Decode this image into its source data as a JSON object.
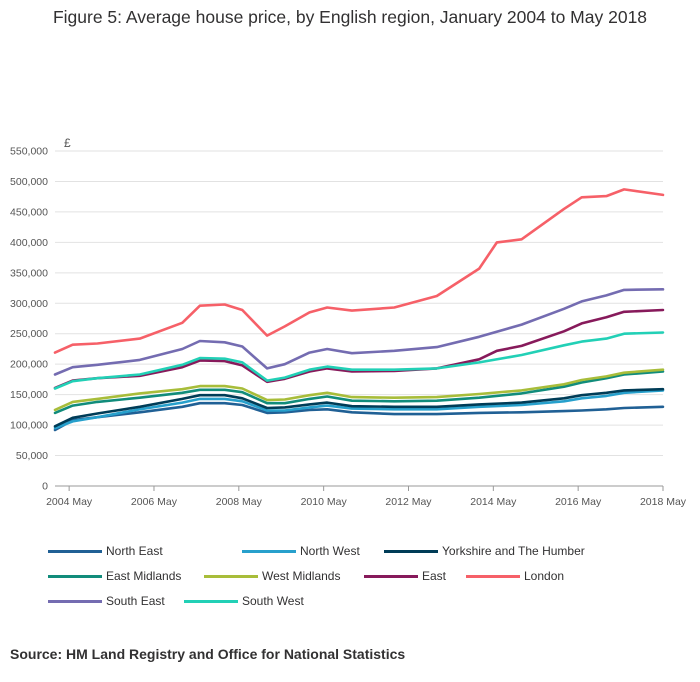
{
  "title": "Figure 5: Average house price, by English region, January 2004 to May 2018",
  "source": "Source: HM Land Registry and Office for National Statistics",
  "chart_data": {
    "type": "line",
    "title": "Figure 5: Average house price, by English region, January 2004 to May 2018",
    "ylabel": "£",
    "ylim": [
      0,
      550000
    ],
    "yticks": [
      0,
      50000,
      100000,
      150000,
      200000,
      250000,
      300000,
      350000,
      400000,
      450000,
      500000,
      550000
    ],
    "ytick_labels": [
      "0",
      "50,000",
      "100,000",
      "150,000",
      "200,000",
      "250,000",
      "300,000",
      "350,000",
      "400,000",
      "450,000",
      "500,000",
      "550,000"
    ],
    "xlim": [
      "2004-01",
      "2018-05"
    ],
    "xticks": [
      "2004-05",
      "2006-05",
      "2008-05",
      "2010-05",
      "2012-05",
      "2014-05",
      "2016-05",
      "2018-05"
    ],
    "xtick_labels": [
      "2004 May",
      "2006 May",
      "2008 May",
      "2010 May",
      "2012 May",
      "2014 May",
      "2016 May",
      "2018 May"
    ],
    "grid": "horizontal",
    "legend_position": "bottom",
    "series": [
      {
        "name": "North East",
        "color": "#206095",
        "points": [
          [
            "2004-01",
            92000
          ],
          [
            "2004-06",
            108000
          ],
          [
            "2005-01",
            113000
          ],
          [
            "2006-01",
            121000
          ],
          [
            "2007-01",
            130000
          ],
          [
            "2007-06",
            136000
          ],
          [
            "2008-01",
            136000
          ],
          [
            "2008-06",
            133000
          ],
          [
            "2009-01",
            120000
          ],
          [
            "2009-06",
            121000
          ],
          [
            "2010-01",
            125000
          ],
          [
            "2010-06",
            126000
          ],
          [
            "2011-01",
            121000
          ],
          [
            "2012-01",
            118000
          ],
          [
            "2013-01",
            118000
          ],
          [
            "2014-01",
            120000
          ],
          [
            "2015-01",
            121000
          ],
          [
            "2016-01",
            123000
          ],
          [
            "2016-06",
            124000
          ],
          [
            "2017-01",
            126000
          ],
          [
            "2017-06",
            128000
          ],
          [
            "2018-05",
            130000
          ]
        ]
      },
      {
        "name": "North West",
        "color": "#27a0cc",
        "points": [
          [
            "2004-01",
            95000
          ],
          [
            "2004-06",
            106000
          ],
          [
            "2005-01",
            113000
          ],
          [
            "2006-01",
            126000
          ],
          [
            "2007-01",
            137000
          ],
          [
            "2007-06",
            143000
          ],
          [
            "2008-01",
            143000
          ],
          [
            "2008-06",
            139000
          ],
          [
            "2009-01",
            124000
          ],
          [
            "2009-06",
            124000
          ],
          [
            "2010-01",
            129000
          ],
          [
            "2010-06",
            132000
          ],
          [
            "2011-01",
            127000
          ],
          [
            "2012-01",
            126000
          ],
          [
            "2013-01",
            126000
          ],
          [
            "2014-01",
            130000
          ],
          [
            "2015-01",
            133000
          ],
          [
            "2016-01",
            139000
          ],
          [
            "2016-06",
            144000
          ],
          [
            "2017-01",
            148000
          ],
          [
            "2017-06",
            153000
          ],
          [
            "2018-05",
            157000
          ]
        ]
      },
      {
        "name": "Yorkshire and The Humber",
        "color": "#003c57",
        "points": [
          [
            "2004-01",
            98000
          ],
          [
            "2004-06",
            112000
          ],
          [
            "2005-01",
            119000
          ],
          [
            "2006-01",
            130000
          ],
          [
            "2007-01",
            143000
          ],
          [
            "2007-06",
            149000
          ],
          [
            "2008-01",
            149000
          ],
          [
            "2008-06",
            144000
          ],
          [
            "2009-01",
            128000
          ],
          [
            "2009-06",
            129000
          ],
          [
            "2010-01",
            134000
          ],
          [
            "2010-06",
            137000
          ],
          [
            "2011-01",
            131000
          ],
          [
            "2012-01",
            130000
          ],
          [
            "2013-01",
            130000
          ],
          [
            "2014-01",
            134000
          ],
          [
            "2015-01",
            137000
          ],
          [
            "2016-01",
            144000
          ],
          [
            "2016-06",
            149000
          ],
          [
            "2017-01",
            153000
          ],
          [
            "2017-06",
            157000
          ],
          [
            "2018-05",
            159000
          ]
        ]
      },
      {
        "name": "East Midlands",
        "color": "#118c7b",
        "points": [
          [
            "2004-01",
            120000
          ],
          [
            "2004-06",
            132000
          ],
          [
            "2005-01",
            138000
          ],
          [
            "2006-01",
            145000
          ],
          [
            "2007-01",
            153000
          ],
          [
            "2007-06",
            158000
          ],
          [
            "2008-01",
            158000
          ],
          [
            "2008-06",
            154000
          ],
          [
            "2009-01",
            136000
          ],
          [
            "2009-06",
            136000
          ],
          [
            "2010-01",
            143000
          ],
          [
            "2010-06",
            147000
          ],
          [
            "2011-01",
            140000
          ],
          [
            "2012-01",
            139000
          ],
          [
            "2013-01",
            140000
          ],
          [
            "2014-01",
            145000
          ],
          [
            "2015-01",
            152000
          ],
          [
            "2016-01",
            163000
          ],
          [
            "2016-06",
            170000
          ],
          [
            "2017-01",
            177000
          ],
          [
            "2017-06",
            183000
          ],
          [
            "2018-05",
            188000
          ]
        ]
      },
      {
        "name": "West Midlands",
        "color": "#a8bd3a",
        "points": [
          [
            "2004-01",
            125000
          ],
          [
            "2004-06",
            138000
          ],
          [
            "2005-01",
            143000
          ],
          [
            "2006-01",
            152000
          ],
          [
            "2007-01",
            159000
          ],
          [
            "2007-06",
            164000
          ],
          [
            "2008-01",
            164000
          ],
          [
            "2008-06",
            160000
          ],
          [
            "2009-01",
            141000
          ],
          [
            "2009-06",
            142000
          ],
          [
            "2010-01",
            149000
          ],
          [
            "2010-06",
            153000
          ],
          [
            "2011-01",
            146000
          ],
          [
            "2012-01",
            145000
          ],
          [
            "2013-01",
            146000
          ],
          [
            "2014-01",
            151000
          ],
          [
            "2015-01",
            157000
          ],
          [
            "2016-01",
            167000
          ],
          [
            "2016-06",
            174000
          ],
          [
            "2017-01",
            180000
          ],
          [
            "2017-06",
            186000
          ],
          [
            "2018-05",
            191000
          ]
        ]
      },
      {
        "name": "East",
        "color": "#871a5b",
        "points": [
          [
            "2004-01",
            161000
          ],
          [
            "2004-06",
            173000
          ],
          [
            "2005-01",
            177000
          ],
          [
            "2006-01",
            181000
          ],
          [
            "2007-01",
            195000
          ],
          [
            "2007-06",
            206000
          ],
          [
            "2008-01",
            205000
          ],
          [
            "2008-06",
            198000
          ],
          [
            "2009-01",
            171000
          ],
          [
            "2009-06",
            176000
          ],
          [
            "2010-01",
            188000
          ],
          [
            "2010-06",
            193000
          ],
          [
            "2011-01",
            188000
          ],
          [
            "2012-01",
            189000
          ],
          [
            "2013-01",
            193000
          ],
          [
            "2014-01",
            208000
          ],
          [
            "2014-06",
            222000
          ],
          [
            "2015-01",
            230000
          ],
          [
            "2016-01",
            254000
          ],
          [
            "2016-06",
            267000
          ],
          [
            "2017-01",
            277000
          ],
          [
            "2017-06",
            286000
          ],
          [
            "2018-05",
            289000
          ]
        ]
      },
      {
        "name": "London",
        "color": "#f66068",
        "points": [
          [
            "2004-01",
            219000
          ],
          [
            "2004-06",
            232000
          ],
          [
            "2005-01",
            234000
          ],
          [
            "2006-01",
            242000
          ],
          [
            "2007-01",
            268000
          ],
          [
            "2007-06",
            296000
          ],
          [
            "2008-01",
            298000
          ],
          [
            "2008-06",
            289000
          ],
          [
            "2009-01",
            247000
          ],
          [
            "2009-06",
            262000
          ],
          [
            "2010-01",
            285000
          ],
          [
            "2010-06",
            293000
          ],
          [
            "2011-01",
            288000
          ],
          [
            "2012-01",
            293000
          ],
          [
            "2013-01",
            312000
          ],
          [
            "2014-01",
            357000
          ],
          [
            "2014-06",
            400000
          ],
          [
            "2015-01",
            405000
          ],
          [
            "2016-01",
            455000
          ],
          [
            "2016-06",
            474000
          ],
          [
            "2017-01",
            476000
          ],
          [
            "2017-06",
            487000
          ],
          [
            "2018-05",
            478000
          ]
        ]
      },
      {
        "name": "South East",
        "color": "#746cb1",
        "points": [
          [
            "2004-01",
            183000
          ],
          [
            "2004-06",
            195000
          ],
          [
            "2005-01",
            199000
          ],
          [
            "2006-01",
            207000
          ],
          [
            "2007-01",
            225000
          ],
          [
            "2007-06",
            238000
          ],
          [
            "2008-01",
            236000
          ],
          [
            "2008-06",
            229000
          ],
          [
            "2009-01",
            193000
          ],
          [
            "2009-06",
            200000
          ],
          [
            "2010-01",
            219000
          ],
          [
            "2010-06",
            225000
          ],
          [
            "2011-01",
            218000
          ],
          [
            "2012-01",
            222000
          ],
          [
            "2013-01",
            228000
          ],
          [
            "2014-01",
            245000
          ],
          [
            "2015-01",
            265000
          ],
          [
            "2016-01",
            291000
          ],
          [
            "2016-06",
            303000
          ],
          [
            "2017-01",
            313000
          ],
          [
            "2017-06",
            322000
          ],
          [
            "2018-05",
            323000
          ]
        ]
      },
      {
        "name": "South West",
        "color": "#22d0b6",
        "points": [
          [
            "2004-01",
            160000
          ],
          [
            "2004-06",
            172000
          ],
          [
            "2005-01",
            177000
          ],
          [
            "2006-01",
            183000
          ],
          [
            "2007-01",
            199000
          ],
          [
            "2007-06",
            210000
          ],
          [
            "2008-01",
            209000
          ],
          [
            "2008-06",
            203000
          ],
          [
            "2009-01",
            173000
          ],
          [
            "2009-06",
            178000
          ],
          [
            "2010-01",
            191000
          ],
          [
            "2010-06",
            196000
          ],
          [
            "2011-01",
            191000
          ],
          [
            "2012-01",
            191000
          ],
          [
            "2013-01",
            193000
          ],
          [
            "2014-01",
            203000
          ],
          [
            "2015-01",
            215000
          ],
          [
            "2016-01",
            231000
          ],
          [
            "2016-06",
            237000
          ],
          [
            "2017-01",
            242000
          ],
          [
            "2017-06",
            250000
          ],
          [
            "2018-05",
            252000
          ]
        ]
      }
    ]
  }
}
